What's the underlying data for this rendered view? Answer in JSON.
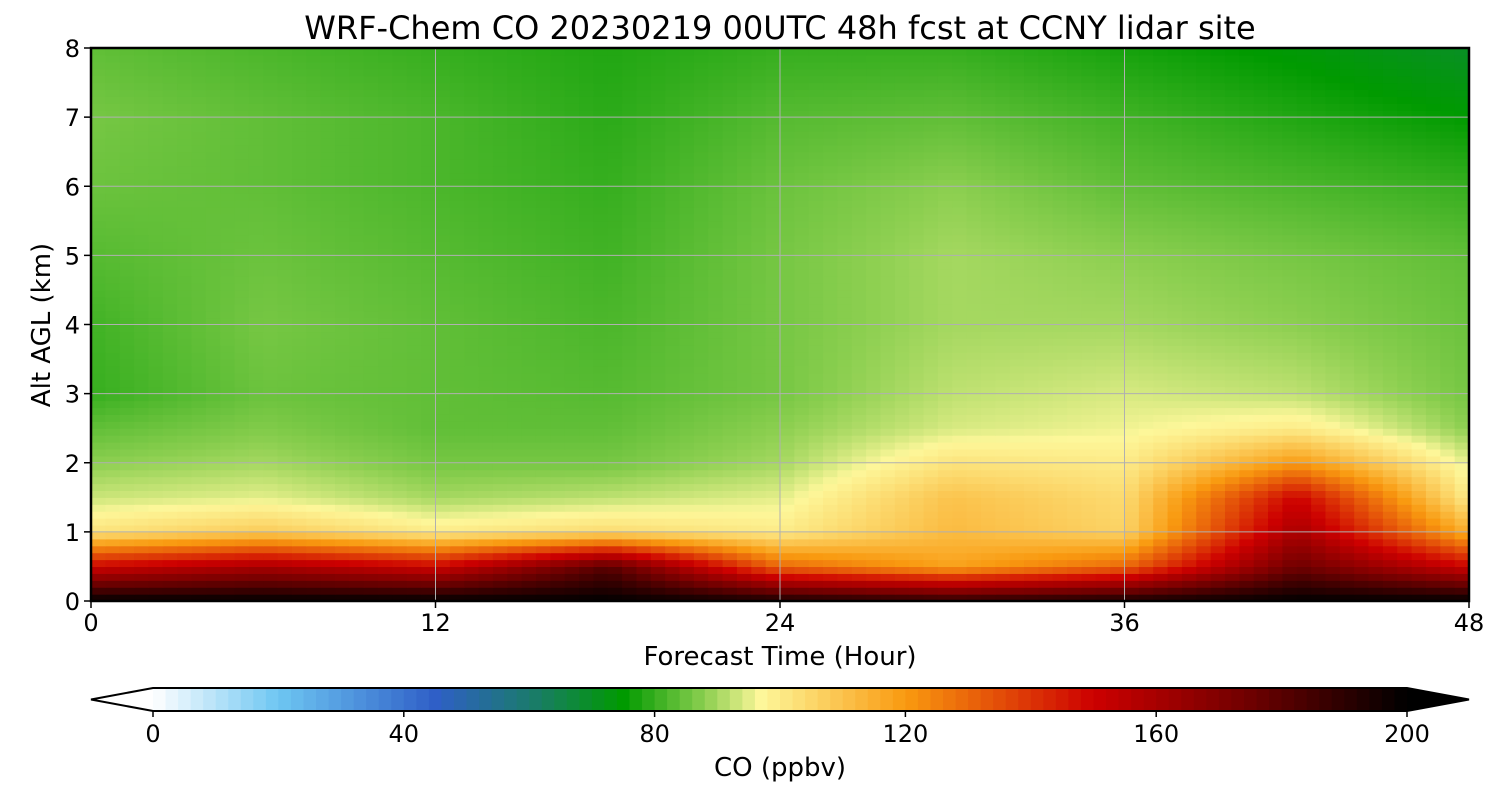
{
  "chart_data": {
    "type": "heatmap",
    "title": "WRF-Chem CO  20230219 00UTC 48h fcst at CCNY lidar site",
    "xlabel": "Forecast Time (Hour)",
    "ylabel": "Alt AGL (km)",
    "xlim": [
      0,
      48
    ],
    "ylim": [
      0,
      8
    ],
    "xticks": [
      "0",
      "12",
      "24",
      "36",
      "48"
    ],
    "yticks": [
      "0",
      "1",
      "2",
      "3",
      "4",
      "5",
      "6",
      "7",
      "8"
    ],
    "grid": true,
    "colorbar": {
      "label": "CO  (ppbv)",
      "min": 0,
      "max": 200,
      "ticks": [
        "0",
        "40",
        "80",
        "120",
        "160",
        "200"
      ],
      "extend": "both",
      "stops": [
        {
          "value": 0,
          "color": "#ffffff"
        },
        {
          "value": 20,
          "color": "#6ec6f2"
        },
        {
          "value": 45,
          "color": "#2f5fc7"
        },
        {
          "value": 60,
          "color": "#1b7a6e"
        },
        {
          "value": 75,
          "color": "#009a00"
        },
        {
          "value": 88,
          "color": "#8ccf50"
        },
        {
          "value": 97,
          "color": "#fdf79a"
        },
        {
          "value": 120,
          "color": "#f99a10"
        },
        {
          "value": 150,
          "color": "#cd0000"
        },
        {
          "value": 175,
          "color": "#6e0000"
        },
        {
          "value": 200,
          "color": "#000000"
        }
      ],
      "under_color": "#ffffff",
      "over_color": "#000000"
    },
    "x": [
      0,
      6,
      12,
      18,
      24,
      30,
      36,
      42,
      48
    ],
    "y": [
      0,
      0.5,
      1,
      1.5,
      2,
      2.5,
      3,
      4,
      5,
      6,
      7,
      8
    ],
    "z": [
      [
        200,
        200,
        200,
        200,
        195,
        190,
        195,
        200,
        200
      ],
      [
        150,
        160,
        150,
        180,
        130,
        118,
        130,
        175,
        150
      ],
      [
        102,
        108,
        100,
        104,
        100,
        112,
        106,
        160,
        115
      ],
      [
        93,
        95,
        90,
        92,
        95,
        110,
        104,
        150,
        100
      ],
      [
        88,
        90,
        86,
        86,
        90,
        102,
        100,
        120,
        95
      ],
      [
        84,
        87,
        84,
        84,
        88,
        94,
        96,
        100,
        88
      ],
      [
        80,
        85,
        84,
        83,
        86,
        92,
        94,
        92,
        86
      ],
      [
        81,
        86,
        84,
        82,
        86,
        90,
        90,
        88,
        85
      ],
      [
        83,
        85,
        83,
        81,
        86,
        90,
        88,
        86,
        84
      ],
      [
        85,
        84,
        82,
        80,
        85,
        88,
        84,
        82,
        80
      ],
      [
        86,
        84,
        82,
        79,
        83,
        84,
        81,
        78,
        75
      ],
      [
        84,
        82,
        80,
        78,
        80,
        80,
        77,
        74,
        70
      ]
    ]
  }
}
